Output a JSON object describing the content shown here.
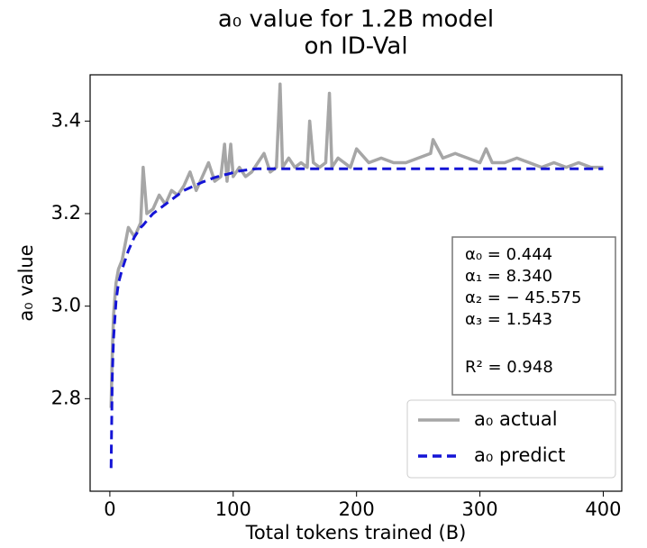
{
  "chart_data": {
    "type": "line",
    "title": [
      "a₀ value for 1.2B model",
      "on ID-Val"
    ],
    "xlabel": "Total tokens trained (B)",
    "ylabel": "a₀ value",
    "x": [
      1,
      2,
      3,
      5,
      7,
      10,
      15,
      20,
      25,
      27,
      30,
      35,
      40,
      45,
      50,
      55,
      60,
      65,
      70,
      75,
      80,
      85,
      90,
      93,
      95,
      98,
      100,
      105,
      110,
      115,
      120,
      125,
      130,
      135,
      138,
      140,
      145,
      150,
      155,
      160,
      162,
      165,
      170,
      175,
      178,
      180,
      185,
      190,
      195,
      200,
      210,
      220,
      230,
      240,
      250,
      260,
      262,
      270,
      280,
      290,
      300,
      305,
      310,
      320,
      330,
      340,
      350,
      360,
      370,
      380,
      390,
      400
    ],
    "series": [
      {
        "name": "a₀ actual",
        "color": "#a6a6a6",
        "dash": false,
        "values": [
          2.78,
          2.9,
          2.98,
          3.05,
          3.08,
          3.1,
          3.17,
          3.15,
          3.18,
          3.3,
          3.2,
          3.21,
          3.24,
          3.22,
          3.25,
          3.24,
          3.26,
          3.29,
          3.25,
          3.28,
          3.31,
          3.27,
          3.28,
          3.35,
          3.27,
          3.35,
          3.28,
          3.3,
          3.28,
          3.29,
          3.31,
          3.33,
          3.29,
          3.3,
          3.48,
          3.3,
          3.32,
          3.3,
          3.31,
          3.3,
          3.4,
          3.31,
          3.3,
          3.31,
          3.46,
          3.3,
          3.32,
          3.31,
          3.3,
          3.34,
          3.31,
          3.32,
          3.31,
          3.31,
          3.32,
          3.33,
          3.36,
          3.32,
          3.33,
          3.32,
          3.31,
          3.34,
          3.31,
          3.31,
          3.32,
          3.31,
          3.3,
          3.31,
          3.3,
          3.31,
          3.3,
          3.3
        ]
      },
      {
        "name": "a₀ predict",
        "color": "#1414d6",
        "dash": true,
        "values": [
          2.65,
          2.85,
          2.93,
          3.01,
          3.05,
          3.08,
          3.12,
          3.15,
          3.17,
          3.175,
          3.185,
          3.2,
          3.21,
          3.22,
          3.23,
          3.24,
          3.25,
          3.256,
          3.262,
          3.268,
          3.273,
          3.278,
          3.282,
          3.284,
          3.285,
          3.287,
          3.289,
          3.292,
          3.294,
          3.296,
          3.297,
          3.297,
          3.297,
          3.297,
          3.297,
          3.297,
          3.297,
          3.297,
          3.297,
          3.297,
          3.297,
          3.297,
          3.297,
          3.297,
          3.297,
          3.297,
          3.297,
          3.297,
          3.297,
          3.297,
          3.297,
          3.297,
          3.297,
          3.297,
          3.297,
          3.297,
          3.297,
          3.297,
          3.297,
          3.297,
          3.297,
          3.297,
          3.297,
          3.297,
          3.297,
          3.297,
          3.297,
          3.297,
          3.297,
          3.297,
          3.297,
          3.297
        ]
      }
    ],
    "xlim": [
      -16,
      415
    ],
    "ylim": [
      2.6,
      3.5
    ],
    "xticks": [
      0,
      100,
      200,
      300,
      400
    ],
    "yticks": [
      2.8,
      {
        "value": 3,
        "label": "3.0"
      },
      3.2,
      3.4
    ],
    "grid": false,
    "legend": "lower right",
    "annotations": [
      "α₀ = 0.444",
      "α₁ = 8.340",
      "α₂ = − 45.575",
      "α₃ = 1.543",
      "R² = 0.948"
    ]
  }
}
